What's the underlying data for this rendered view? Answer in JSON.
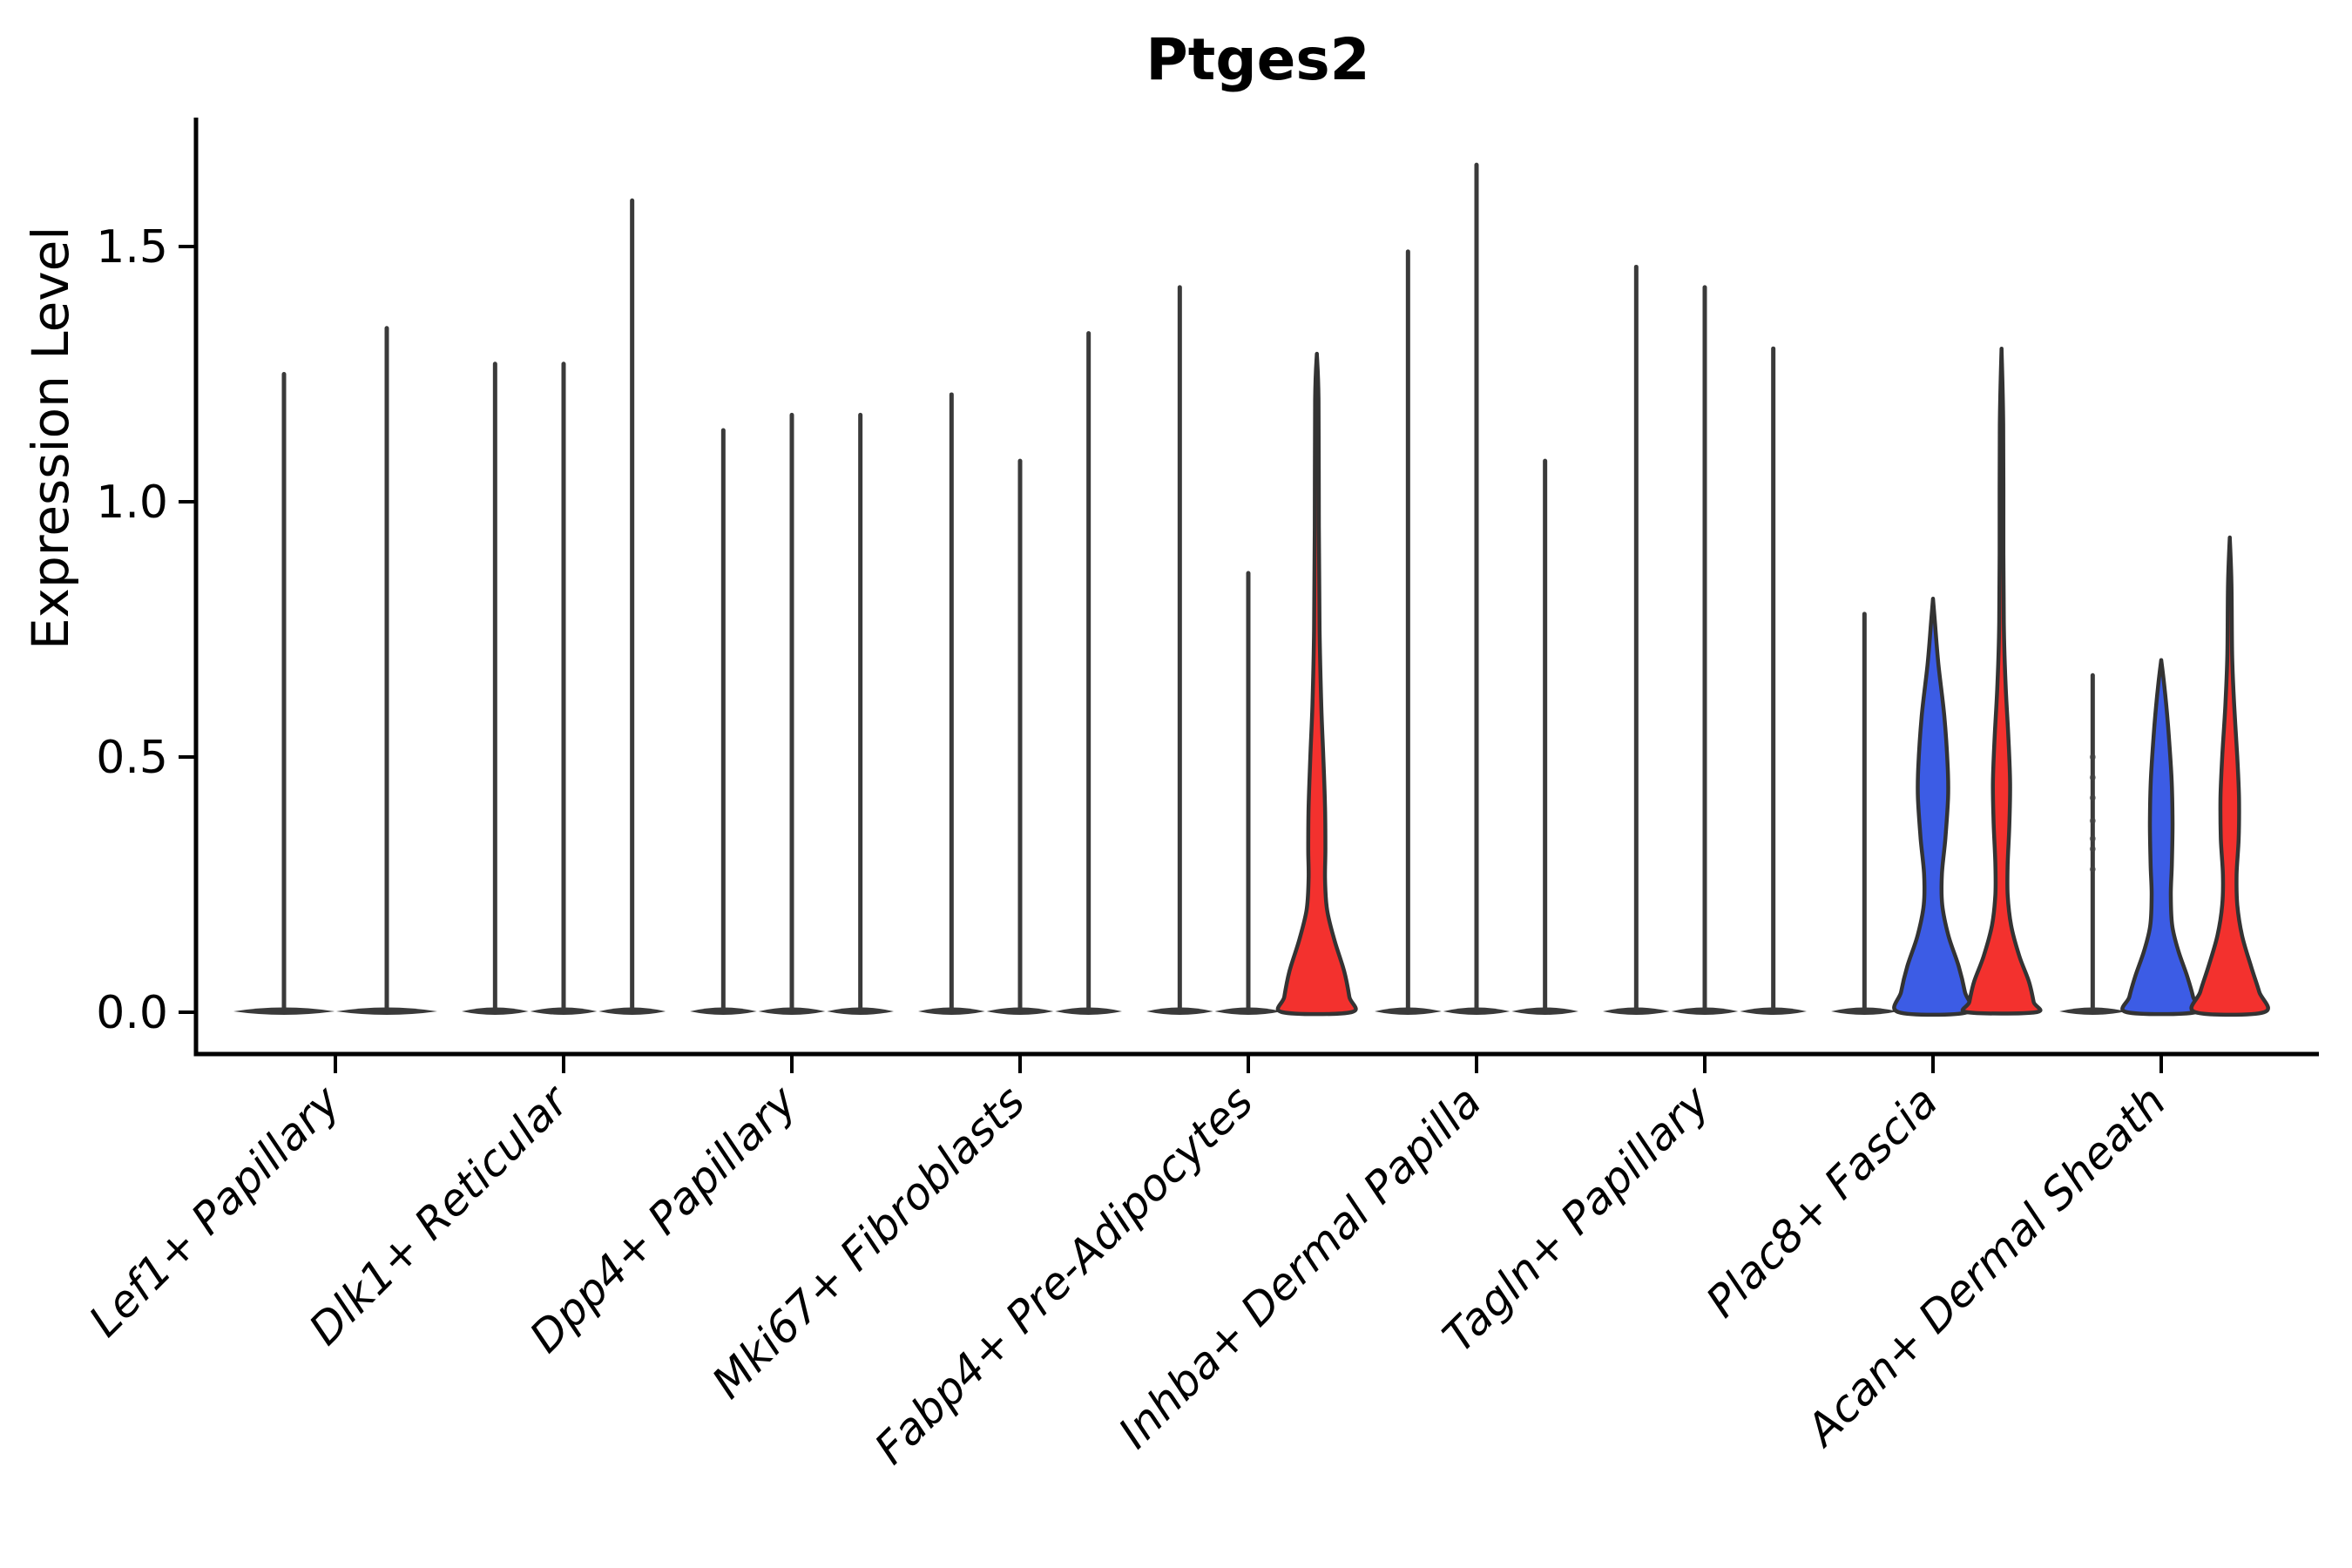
{
  "page": {
    "title": "Ptges2"
  },
  "chart_data": {
    "type": "violin",
    "title": "Ptges2",
    "xlabel": "",
    "ylabel": "Expression Level",
    "ytick_labels": [
      "0.0",
      "0.5",
      "1.0",
      "1.5"
    ],
    "ytick_values": [
      0.0,
      0.5,
      1.0,
      1.5
    ],
    "ylim": [
      0,
      1.75
    ],
    "grid": false,
    "legend_position": "none",
    "colors": {
      "red": "#F3312E",
      "blue": "#3C5CE5",
      "spike": "#3A3A3A",
      "outline": "#333333"
    },
    "categories": [
      "Lef1+ Papillary",
      "Dlk1+ Reticular",
      "Dpp4+ Papillary",
      "Mki67+ Fibroblasts",
      "Fabp4+ Pre-Adipocytes",
      "Inhba+ Dermal Papilla",
      "Tagln+ Papillary",
      "Plac8+ Fascia",
      "Acan+ Dermal Sheath"
    ],
    "violins": [
      {
        "category": "Lef1+ Papillary",
        "items": [
          {
            "max": 1.25,
            "fill": "none"
          },
          {
            "max": 1.34,
            "fill": "none"
          }
        ]
      },
      {
        "category": "Dlk1+ Reticular",
        "items": [
          {
            "max": 1.27,
            "fill": "none"
          },
          {
            "max": 1.27,
            "fill": "none"
          },
          {
            "max": 1.59,
            "fill": "none"
          }
        ]
      },
      {
        "category": "Dpp4+ Papillary",
        "items": [
          {
            "max": 1.14,
            "fill": "none"
          },
          {
            "max": 1.17,
            "fill": "none"
          },
          {
            "max": 1.17,
            "fill": "none"
          }
        ]
      },
      {
        "category": "Mki67+ Fibroblasts",
        "items": [
          {
            "max": 1.21,
            "fill": "none"
          },
          {
            "max": 1.08,
            "fill": "none"
          },
          {
            "max": 1.33,
            "fill": "none"
          }
        ]
      },
      {
        "category": "Fabp4+ Pre-Adipocytes",
        "items": [
          {
            "max": 1.42,
            "fill": "none"
          },
          {
            "max": 0.86,
            "fill": "none"
          },
          {
            "max": 1.29,
            "fill": "red",
            "profile": [
              [
                1.29,
                0.0
              ],
              [
                1.2,
                0.05
              ],
              [
                0.95,
                0.06
              ],
              [
                0.75,
                0.08
              ],
              [
                0.6,
                0.13
              ],
              [
                0.5,
                0.19
              ],
              [
                0.4,
                0.24
              ],
              [
                0.32,
                0.25
              ],
              [
                0.26,
                0.24
              ],
              [
                0.2,
                0.3
              ],
              [
                0.14,
                0.52
              ],
              [
                0.08,
                0.8
              ],
              [
                0.03,
                0.95
              ],
              [
                0.0,
                1.0
              ]
            ]
          }
        ]
      },
      {
        "category": "Inhba+ Dermal Papilla",
        "items": [
          {
            "max": 1.49,
            "fill": "none"
          },
          {
            "max": 1.66,
            "fill": "none"
          },
          {
            "max": 1.08,
            "fill": "none"
          }
        ]
      },
      {
        "category": "Tagln+ Papillary",
        "items": [
          {
            "max": 1.46,
            "fill": "none"
          },
          {
            "max": 1.42,
            "fill": "none"
          },
          {
            "max": 1.3,
            "fill": "none"
          }
        ]
      },
      {
        "category": "Plac8+ Fascia",
        "items": [
          {
            "max": 0.78,
            "fill": "none"
          },
          {
            "max": 0.81,
            "fill": "blue",
            "profile": [
              [
                0.81,
                0.0
              ],
              [
                0.76,
                0.06
              ],
              [
                0.68,
                0.16
              ],
              [
                0.58,
                0.33
              ],
              [
                0.48,
                0.43
              ],
              [
                0.42,
                0.44
              ],
              [
                0.34,
                0.36
              ],
              [
                0.27,
                0.26
              ],
              [
                0.21,
                0.27
              ],
              [
                0.15,
                0.45
              ],
              [
                0.09,
                0.75
              ],
              [
                0.04,
                0.93
              ],
              [
                0.0,
                1.0
              ]
            ]
          },
          {
            "max": 1.3,
            "fill": "red",
            "profile": [
              [
                1.3,
                0.0
              ],
              [
                1.15,
                0.05
              ],
              [
                0.9,
                0.055
              ],
              [
                0.75,
                0.07
              ],
              [
                0.64,
                0.12
              ],
              [
                0.54,
                0.2
              ],
              [
                0.45,
                0.25
              ],
              [
                0.37,
                0.23
              ],
              [
                0.29,
                0.18
              ],
              [
                0.23,
                0.18
              ],
              [
                0.17,
                0.28
              ],
              [
                0.11,
                0.52
              ],
              [
                0.06,
                0.8
              ],
              [
                0.02,
                0.94
              ],
              [
                0.0,
                1.0
              ]
            ]
          }
        ]
      },
      {
        "category": "Acan+ Dermal Sheath",
        "items": [
          {
            "max": 0.66,
            "fill": "none",
            "dots": [
              0.5,
              0.46,
              0.42,
              0.375,
              0.34,
              0.32,
              0.28
            ]
          },
          {
            "max": 0.69,
            "fill": "blue",
            "profile": [
              [
                0.69,
                0.0
              ],
              [
                0.64,
                0.09
              ],
              [
                0.56,
                0.2
              ],
              [
                0.46,
                0.3
              ],
              [
                0.37,
                0.33
              ],
              [
                0.29,
                0.31
              ],
              [
                0.23,
                0.28
              ],
              [
                0.17,
                0.32
              ],
              [
                0.12,
                0.5
              ],
              [
                0.07,
                0.76
              ],
              [
                0.03,
                0.93
              ],
              [
                0.0,
                1.0
              ]
            ]
          },
          {
            "max": 0.93,
            "fill": "red",
            "profile": [
              [
                0.93,
                0.0
              ],
              [
                0.84,
                0.05
              ],
              [
                0.7,
                0.07
              ],
              [
                0.6,
                0.13
              ],
              [
                0.5,
                0.22
              ],
              [
                0.42,
                0.27
              ],
              [
                0.34,
                0.26
              ],
              [
                0.27,
                0.2
              ],
              [
                0.21,
                0.22
              ],
              [
                0.15,
                0.36
              ],
              [
                0.09,
                0.62
              ],
              [
                0.04,
                0.86
              ],
              [
                0.0,
                1.0
              ]
            ]
          }
        ]
      }
    ]
  }
}
